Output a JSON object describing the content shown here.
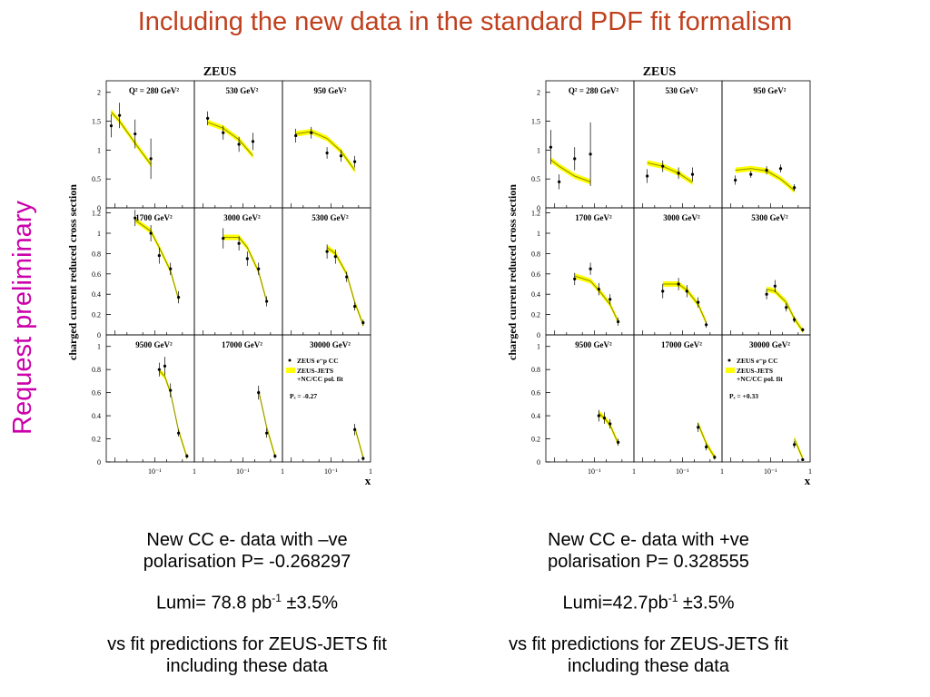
{
  "title": "Including the new data in the standard PDF fit formalism",
  "side_label": "Request preliminary",
  "colors": {
    "title": "#c0401e",
    "side_label": "#cc00aa",
    "band": "#ffff00",
    "curve": "#8a8a00"
  },
  "figures": [
    {
      "header": "ZEUS",
      "ylabel": "charged current reduced cross section",
      "xlabel": "x",
      "x_tick_labels": [
        "10⁻¹",
        "1"
      ],
      "legend": {
        "data": "ZEUS e⁻p CC",
        "fit_1": "ZEUS-JETS",
        "fit_2": "+NC/CC pol. fit",
        "pol": "Pₑ = -0.27"
      },
      "caption": {
        "line1": "New CC e- data with –ve",
        "line2": "polarisation P= -0.268297",
        "lumi_prefix": "Lumi= 78.8 pb",
        "lumi_exp": "-1",
        "lumi_suffix": " ±3.5%",
        "fit1": "vs fit predictions for ZEUS-JETS fit",
        "fit2": "including these data"
      }
    },
    {
      "header": "ZEUS",
      "ylabel": "charged current reduced cross section",
      "xlabel": "x",
      "x_tick_labels": [
        "10⁻¹",
        "1"
      ],
      "legend": {
        "data": "ZEUS e⁻p CC",
        "fit_1": "ZEUS-JETS",
        "fit_2": "+NC/CC pol. fit",
        "pol": "Pₑ = +0.33"
      },
      "caption": {
        "line1": "New CC e- data with +ve",
        "line2": "polarisation P= 0.328555",
        "lumi_prefix": "Lumi=42.7pb",
        "lumi_exp": "-1",
        "lumi_suffix": " ±3.5%",
        "fit1": "vs fit predictions for ZEUS-JETS fit",
        "fit2": "including these data"
      }
    }
  ],
  "chart_data": [
    {
      "type": "scatter",
      "title": "ZEUS",
      "ylabel": "charged current reduced cross section",
      "xlabel": "x",
      "x_scale": "log",
      "xlim": [
        0.006,
        1
      ],
      "row_ylims": [
        [
          0,
          2.2
        ],
        [
          0,
          1.25
        ],
        [
          0,
          1.1
        ]
      ],
      "row_yticks": [
        [
          0,
          0.5,
          1,
          1.5,
          2
        ],
        [
          0,
          0.2,
          0.4,
          0.6,
          0.8,
          1,
          1.2
        ],
        [
          0,
          0.2,
          0.4,
          0.6,
          0.8,
          1
        ]
      ],
      "panels": [
        {
          "label": "Q² = 280 GeV²",
          "x": [
            0.008,
            0.013,
            0.032,
            0.08
          ],
          "y": [
            1.42,
            1.6,
            1.28,
            0.85
          ],
          "err": [
            0.2,
            0.22,
            0.25,
            0.35
          ],
          "fit": [
            1.66,
            1.5,
            1.12,
            0.75
          ]
        },
        {
          "label": "530 GeV²",
          "x": [
            0.013,
            0.032,
            0.08,
            0.18
          ],
          "y": [
            1.55,
            1.3,
            1.1,
            1.15
          ],
          "err": [
            0.12,
            0.12,
            0.13,
            0.15
          ],
          "fit": [
            1.48,
            1.38,
            1.18,
            0.9
          ]
        },
        {
          "label": "950 GeV²",
          "x": [
            0.013,
            0.032,
            0.08,
            0.18,
            0.4
          ],
          "y": [
            1.25,
            1.3,
            0.95,
            0.9,
            0.8
          ],
          "err": [
            0.12,
            0.1,
            0.1,
            0.1,
            0.1
          ],
          "fit": [
            1.28,
            1.32,
            1.2,
            0.98,
            0.65
          ]
        },
        {
          "label": "1700 GeV²",
          "x": [
            0.032,
            0.08,
            0.13,
            0.25,
            0.4
          ],
          "y": [
            1.15,
            1.0,
            0.78,
            0.65,
            0.37
          ],
          "err": [
            0.08,
            0.08,
            0.08,
            0.06,
            0.06
          ],
          "fit": [
            1.13,
            1.02,
            0.86,
            0.63,
            0.35
          ]
        },
        {
          "label": "3000 GeV²",
          "x": [
            0.032,
            0.08,
            0.13,
            0.25,
            0.4
          ],
          "y": [
            0.95,
            0.9,
            0.75,
            0.65,
            0.33
          ],
          "err": [
            0.1,
            0.07,
            0.07,
            0.06,
            0.05
          ],
          "fit": [
            0.96,
            0.96,
            0.86,
            0.62,
            0.33
          ]
        },
        {
          "label": "5300 GeV²",
          "x": [
            0.08,
            0.13,
            0.25,
            0.4,
            0.65
          ],
          "y": [
            0.82,
            0.77,
            0.57,
            0.28,
            0.12
          ],
          "err": [
            0.07,
            0.07,
            0.05,
            0.04,
            0.03
          ],
          "fit": [
            0.86,
            0.8,
            0.6,
            0.32,
            0.1
          ]
        },
        {
          "label": "9500 GeV²",
          "x": [
            0.13,
            0.18,
            0.25,
            0.4,
            0.65
          ],
          "y": [
            0.8,
            0.83,
            0.62,
            0.25,
            0.05
          ],
          "err": [
            0.06,
            0.08,
            0.06,
            0.03,
            0.02
          ],
          "fit": [
            0.79,
            0.74,
            0.6,
            0.27,
            0.04
          ]
        },
        {
          "label": "17000 GeV²",
          "x": [
            0.25,
            0.4,
            0.65
          ],
          "y": [
            0.6,
            0.25,
            0.05
          ],
          "err": [
            0.06,
            0.04,
            0.02
          ],
          "fit": [
            0.62,
            0.3,
            0.05
          ]
        },
        {
          "label": "30000 GeV²",
          "x": [
            0.4,
            0.65
          ],
          "y": [
            0.28,
            0.03
          ],
          "err": [
            0.05,
            0.02
          ],
          "fit": [
            0.3,
            0.04
          ]
        }
      ]
    },
    {
      "type": "scatter",
      "title": "ZEUS",
      "ylabel": "charged current reduced cross section",
      "xlabel": "x",
      "x_scale": "log",
      "xlim": [
        0.006,
        1
      ],
      "row_ylims": [
        [
          0,
          2.2
        ],
        [
          0,
          1.25
        ],
        [
          0,
          1.1
        ]
      ],
      "row_yticks": [
        [
          0,
          0.5,
          1,
          1.5,
          2
        ],
        [
          0,
          0.2,
          0.4,
          0.6,
          0.8,
          1,
          1.2
        ],
        [
          0,
          0.2,
          0.4,
          0.6,
          0.8,
          1
        ]
      ],
      "panels": [
        {
          "label": "Q² = 280 GeV²",
          "x": [
            0.008,
            0.013,
            0.032,
            0.08
          ],
          "y": [
            1.05,
            0.45,
            0.85,
            0.93
          ],
          "err": [
            0.3,
            0.13,
            0.2,
            0.55
          ],
          "fit": [
            0.83,
            0.72,
            0.55,
            0.45
          ]
        },
        {
          "label": "530 GeV²",
          "x": [
            0.013,
            0.032,
            0.08,
            0.18
          ],
          "y": [
            0.55,
            0.72,
            0.6,
            0.58
          ],
          "err": [
            0.12,
            0.1,
            0.1,
            0.12
          ],
          "fit": [
            0.78,
            0.72,
            0.6,
            0.44
          ]
        },
        {
          "label": "950 GeV²",
          "x": [
            0.013,
            0.032,
            0.08,
            0.18,
            0.4
          ],
          "y": [
            0.48,
            0.58,
            0.65,
            0.68,
            0.35
          ],
          "err": [
            0.08,
            0.06,
            0.07,
            0.07,
            0.06
          ],
          "fit": [
            0.65,
            0.68,
            0.64,
            0.5,
            0.3
          ]
        },
        {
          "label": "1700 GeV²",
          "x": [
            0.032,
            0.08,
            0.13,
            0.25,
            0.4
          ],
          "y": [
            0.55,
            0.65,
            0.45,
            0.35,
            0.13
          ],
          "err": [
            0.06,
            0.06,
            0.06,
            0.05,
            0.04
          ],
          "fit": [
            0.58,
            0.53,
            0.44,
            0.3,
            0.13
          ]
        },
        {
          "label": "3000 GeV²",
          "x": [
            0.032,
            0.08,
            0.13,
            0.25,
            0.4
          ],
          "y": [
            0.43,
            0.5,
            0.43,
            0.32,
            0.1
          ],
          "err": [
            0.07,
            0.06,
            0.06,
            0.05,
            0.03
          ],
          "fit": [
            0.5,
            0.5,
            0.44,
            0.3,
            0.12
          ]
        },
        {
          "label": "5300 GeV²",
          "x": [
            0.08,
            0.13,
            0.25,
            0.4,
            0.65
          ],
          "y": [
            0.4,
            0.48,
            0.27,
            0.15,
            0.05
          ],
          "err": [
            0.05,
            0.06,
            0.04,
            0.03,
            0.02
          ],
          "fit": [
            0.45,
            0.43,
            0.32,
            0.16,
            0.04
          ]
        },
        {
          "label": "9500 GeV²",
          "x": [
            0.13,
            0.18,
            0.25,
            0.4
          ],
          "y": [
            0.4,
            0.38,
            0.33,
            0.17
          ],
          "err": [
            0.05,
            0.05,
            0.04,
            0.03
          ],
          "fit": [
            0.42,
            0.38,
            0.32,
            0.16
          ]
        },
        {
          "label": "17000 GeV²",
          "x": [
            0.25,
            0.4,
            0.65
          ],
          "y": [
            0.3,
            0.13,
            0.04
          ],
          "err": [
            0.04,
            0.03,
            0.02
          ],
          "fit": [
            0.33,
            0.16,
            0.04
          ]
        },
        {
          "label": "30000 GeV²",
          "x": [
            0.4,
            0.65
          ],
          "y": [
            0.15,
            0.02
          ],
          "err": [
            0.03,
            0.01
          ],
          "fit": [
            0.2,
            0.03
          ]
        }
      ]
    }
  ]
}
